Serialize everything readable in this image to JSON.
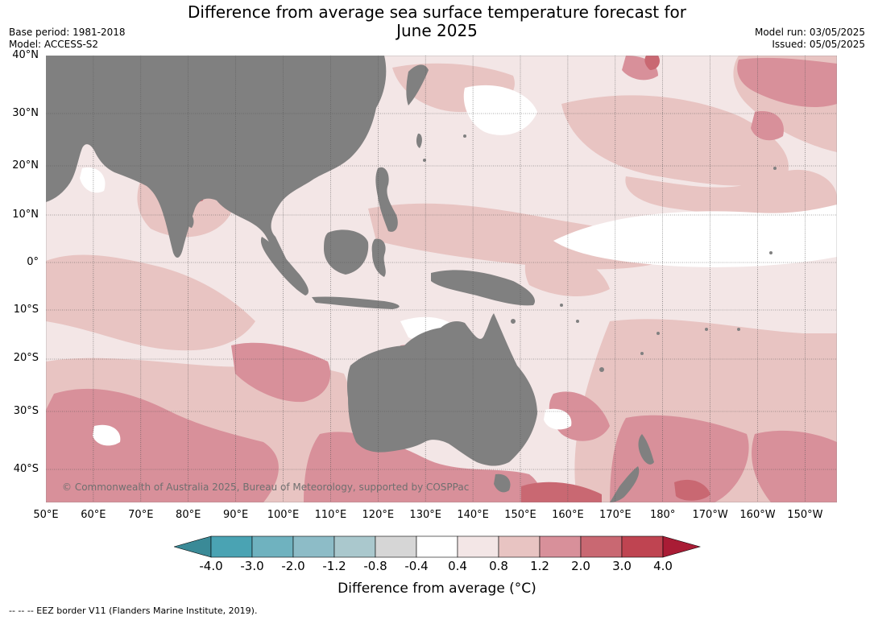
{
  "title_line1": "Difference from average sea surface temperature forecast for",
  "title_line2": "June 2025",
  "base_period": "Base period: 1981-2018",
  "model": "Model: ACCESS-S2",
  "model_run": "Model run: 03/05/2025",
  "issued": "Issued: 05/05/2025",
  "latitude_labels": [
    "40°N",
    "30°N",
    "20°N",
    "10°N",
    "0°",
    "10°S",
    "20°S",
    "30°S",
    "40°S"
  ],
  "longitude_labels": [
    "50°E",
    "60°E",
    "70°E",
    "80°E",
    "90°E",
    "100°E",
    "110°E",
    "120°E",
    "130°E",
    "140°E",
    "150°E",
    "160°E",
    "170°E",
    "180°",
    "170°W",
    "160°W",
    "150°W"
  ],
  "copyright": "© Commonwealth of Australia 2025, Bureau of Meteorology, supported by COSPPac",
  "colorbar": {
    "labels": [
      "-4.0",
      "-3.0",
      "-2.0",
      "-1.2",
      "-0.8",
      "-0.4",
      "0.4",
      "0.8",
      "1.2",
      "2.0",
      "3.0",
      "4.0"
    ],
    "colors": [
      "#3a8a97",
      "#4aa3b3",
      "#6fb2bf",
      "#8dbcc7",
      "#aac8cd",
      "#d6d6d6",
      "#ffffff",
      "#f3e6e6",
      "#e8c4c2",
      "#d8909a",
      "#c96872",
      "#bf4451",
      "#a91c35"
    ],
    "title": "Difference from average (°C)"
  },
  "land_color": "#808080",
  "footnote": "--  --  -- EEZ border V11 (Flanders Marine Institute, 2019)."
}
